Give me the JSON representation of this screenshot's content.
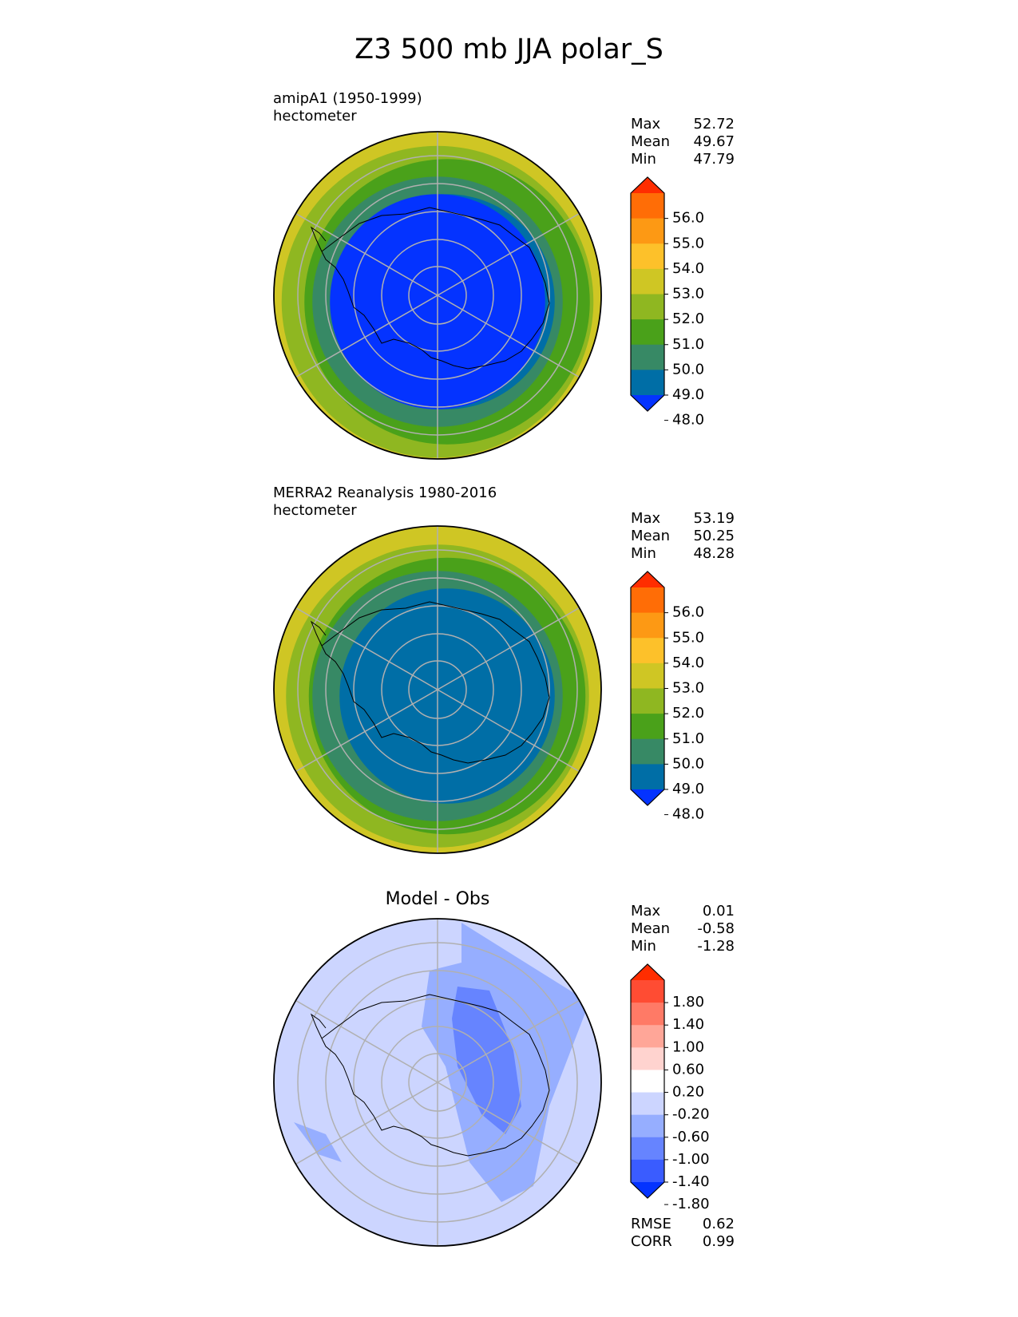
{
  "title": "Z3 500 mb JJA polar_S",
  "chart_data": [
    {
      "type": "heatmap",
      "title": "amipA1 (1950-1999)",
      "units": "hectometer",
      "stats": [
        {
          "label": "Max",
          "value": "52.72"
        },
        {
          "label": "Mean",
          "value": "49.67"
        },
        {
          "label": "Min",
          "value": "47.79"
        }
      ],
      "colorbar": {
        "ticks": [
          "56.0",
          "55.0",
          "54.0",
          "53.0",
          "52.0",
          "51.0",
          "50.0",
          "49.0",
          "48.0"
        ],
        "colors": [
          "#0433ff",
          "#006ea6",
          "#378965",
          "#4aa11a",
          "#8fb721",
          "#cfc624",
          "#fdc12a",
          "#fd9914",
          "#ff6d06",
          "#ff2d00"
        ]
      },
      "rings_from_pole": [
        {
          "value": 48.0,
          "label": "below 48",
          "color": "#0433ff"
        },
        {
          "value": 48.5,
          "label": "48-49",
          "color": "#006ea6"
        },
        {
          "value": 49.5,
          "label": "49-50",
          "color": "#378965"
        },
        {
          "value": 50.5,
          "label": "50-51",
          "color": "#4aa11a"
        },
        {
          "value": 51.5,
          "label": "51-52",
          "color": "#8fb721"
        },
        {
          "value": 52.5,
          "label": "52-53",
          "color": "#cfc624"
        }
      ]
    },
    {
      "type": "heatmap",
      "title": "MERRA2 Reanalysis 1980-2016",
      "units": "hectometer",
      "stats": [
        {
          "label": "Max",
          "value": "53.19"
        },
        {
          "label": "Mean",
          "value": "50.25"
        },
        {
          "label": "Min",
          "value": "48.28"
        }
      ],
      "colorbar": {
        "ticks": [
          "56.0",
          "55.0",
          "54.0",
          "53.0",
          "52.0",
          "51.0",
          "50.0",
          "49.0",
          "48.0"
        ],
        "colors": [
          "#0433ff",
          "#006ea6",
          "#378965",
          "#4aa11a",
          "#8fb721",
          "#cfc624",
          "#fdc12a",
          "#fd9914",
          "#ff6d06",
          "#ff2d00"
        ]
      },
      "rings_from_pole": [
        {
          "value": 48.5,
          "label": "48-49",
          "color": "#006ea6"
        },
        {
          "value": 49.5,
          "label": "49-50",
          "color": "#378965"
        },
        {
          "value": 50.5,
          "label": "50-51",
          "color": "#4aa11a"
        },
        {
          "value": 51.5,
          "label": "51-52",
          "color": "#8fb721"
        },
        {
          "value": 52.5,
          "label": "52-53",
          "color": "#cfc624"
        }
      ]
    },
    {
      "type": "heatmap",
      "title": "Model - Obs",
      "stats": [
        {
          "label": "Max",
          "value": "0.01"
        },
        {
          "label": "Mean",
          "value": "-0.58"
        },
        {
          "label": "Min",
          "value": "-1.28"
        }
      ],
      "colorbar": {
        "ticks": [
          "1.80",
          "1.40",
          "1.00",
          "0.60",
          "0.20",
          "-0.20",
          "-0.60",
          "-1.00",
          "-1.40",
          "-1.80"
        ],
        "colors": [
          "#0433ff",
          "#3a5cff",
          "#6684ff",
          "#96aeff",
          "#ccd5ff",
          "#ffffff",
          "#ffd3cf",
          "#ffa698",
          "#ff7a66",
          "#ff4c33",
          "#ff2d00"
        ]
      },
      "metrics": [
        {
          "label": "RMSE",
          "value": "0.62"
        },
        {
          "label": "CORR",
          "value": "0.99"
        }
      ]
    }
  ]
}
